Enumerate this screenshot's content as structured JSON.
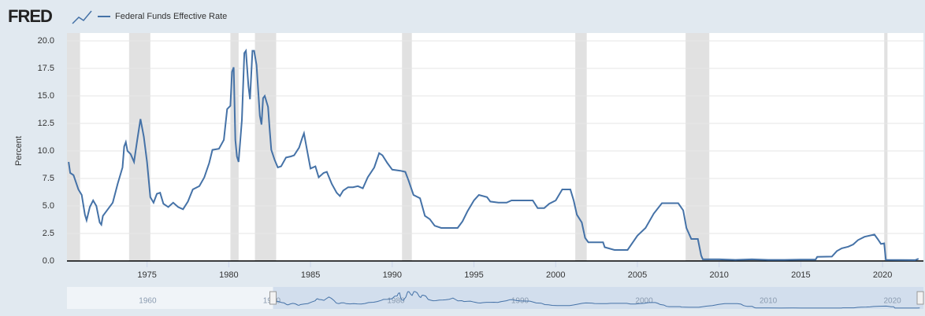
{
  "chart_data": {
    "type": "line",
    "logo": "FRED",
    "ylabel": "Percent",
    "x": [
      1970.2,
      1970.3,
      1970.5,
      1970.8,
      1971.0,
      1971.2,
      1971.3,
      1971.5,
      1971.7,
      1971.9,
      1972.1,
      1972.2,
      1972.3,
      1972.6,
      1972.9,
      1973.2,
      1973.5,
      1973.6,
      1973.7,
      1973.8,
      1974.0,
      1974.2,
      1974.4,
      1974.6,
      1974.8,
      1975.0,
      1975.2,
      1975.4,
      1975.6,
      1975.8,
      1976.0,
      1976.3,
      1976.6,
      1976.9,
      1977.2,
      1977.5,
      1977.8,
      1978.2,
      1978.5,
      1978.8,
      1979.0,
      1979.4,
      1979.7,
      1979.9,
      1980.1,
      1980.2,
      1980.3,
      1980.4,
      1980.5,
      1980.6,
      1980.8,
      1980.95,
      1981.05,
      1981.2,
      1981.3,
      1981.45,
      1981.55,
      1981.7,
      1981.9,
      1982.0,
      1982.1,
      1982.2,
      1982.4,
      1982.5,
      1982.6,
      1982.8,
      1983.0,
      1983.2,
      1983.5,
      1983.8,
      1984.0,
      1984.3,
      1984.5,
      1984.6,
      1984.8,
      1985.0,
      1985.3,
      1985.5,
      1985.8,
      1986.0,
      1986.3,
      1986.6,
      1986.8,
      1987.0,
      1987.3,
      1987.6,
      1987.9,
      1988.2,
      1988.5,
      1988.9,
      1989.2,
      1989.4,
      1989.7,
      1990.0,
      1990.5,
      1990.8,
      1991.0,
      1991.3,
      1991.7,
      1992.0,
      1992.3,
      1992.6,
      1993.0,
      1993.5,
      1994.0,
      1994.3,
      1994.6,
      1995.0,
      1995.3,
      1995.8,
      1996.0,
      1996.5,
      1997.0,
      1997.3,
      1998.0,
      1998.6,
      1998.9,
      1999.3,
      1999.6,
      2000.0,
      2000.4,
      2000.9,
      2001.1,
      2001.3,
      2001.6,
      2001.8,
      2002.0,
      2002.9,
      2003.0,
      2003.6,
      2004.4,
      2005.0,
      2005.5,
      2006.0,
      2006.5,
      2007.5,
      2007.8,
      2008.0,
      2008.3,
      2008.7,
      2008.9,
      2009.0,
      2010.0,
      2011.0,
      2012.0,
      2013.0,
      2014.0,
      2015.0,
      2015.9,
      2016.0,
      2016.9,
      2017.2,
      2017.5,
      2017.9,
      2018.2,
      2018.5,
      2018.9,
      2019.5,
      2019.7,
      2019.9,
      2020.1,
      2020.2,
      2021.0,
      2022.0,
      2022.2
    ],
    "series": [
      {
        "name": "Federal Funds Effective Rate",
        "color": "#4572a7",
        "values": [
          9.0,
          8.0,
          7.8,
          6.5,
          6.0,
          4.2,
          3.7,
          4.9,
          5.5,
          5.0,
          3.5,
          3.3,
          4.1,
          4.7,
          5.3,
          7.0,
          8.5,
          10.4,
          10.8,
          10.0,
          9.7,
          9.0,
          11.0,
          12.9,
          11.3,
          9.0,
          5.8,
          5.3,
          6.1,
          6.2,
          5.2,
          4.9,
          5.3,
          4.9,
          4.7,
          5.4,
          6.5,
          6.8,
          7.6,
          8.9,
          10.1,
          10.2,
          11.0,
          13.8,
          14.1,
          17.2,
          17.6,
          11.0,
          9.5,
          9.0,
          12.8,
          18.9,
          19.1,
          15.9,
          14.7,
          19.1,
          19.1,
          17.8,
          13.2,
          12.4,
          14.8,
          15.0,
          14.0,
          12.0,
          10.1,
          9.2,
          8.5,
          8.6,
          9.4,
          9.5,
          9.6,
          10.3,
          11.2,
          11.6,
          10.0,
          8.4,
          8.6,
          7.6,
          8.0,
          8.1,
          7.0,
          6.2,
          5.9,
          6.4,
          6.7,
          6.7,
          6.8,
          6.6,
          7.6,
          8.5,
          9.8,
          9.6,
          8.9,
          8.3,
          8.2,
          8.1,
          7.3,
          6.0,
          5.7,
          4.1,
          3.8,
          3.2,
          3.0,
          3.0,
          3.0,
          3.6,
          4.5,
          5.5,
          6.0,
          5.8,
          5.4,
          5.3,
          5.3,
          5.5,
          5.5,
          5.5,
          4.8,
          4.8,
          5.2,
          5.5,
          6.5,
          6.5,
          5.5,
          4.2,
          3.5,
          2.1,
          1.7,
          1.7,
          1.25,
          1.0,
          1.0,
          2.3,
          3.0,
          4.3,
          5.25,
          5.25,
          4.6,
          3.0,
          2.0,
          2.0,
          0.5,
          0.15,
          0.15,
          0.1,
          0.15,
          0.1,
          0.1,
          0.12,
          0.12,
          0.37,
          0.4,
          0.9,
          1.15,
          1.3,
          1.5,
          1.9,
          2.2,
          2.4,
          2.0,
          1.55,
          1.6,
          0.1,
          0.09,
          0.08,
          0.2
        ]
      }
    ],
    "recessions": [
      [
        1970.1,
        1970.9
      ],
      [
        1973.9,
        1975.2
      ],
      [
        1980.1,
        1980.6
      ],
      [
        1981.6,
        1982.9
      ],
      [
        1990.6,
        1991.2
      ],
      [
        2001.2,
        2001.9
      ],
      [
        2007.95,
        2009.4
      ],
      [
        2020.1,
        2020.3
      ]
    ],
    "xlim": [
      1970.1,
      2022.5
    ],
    "xticks": [
      1975,
      1980,
      1985,
      1990,
      1995,
      2000,
      2005,
      2010,
      2015,
      2020
    ],
    "ylim": [
      0,
      20
    ],
    "yticks": [
      {
        "value": 0,
        "label": "0.0"
      },
      2.5,
      {
        "value": 5,
        "label": "5.0"
      },
      7.5,
      {
        "value": 10,
        "label": "10.0"
      },
      12.5,
      {
        "value": 15,
        "label": "15.0"
      },
      17.5,
      {
        "value": 20,
        "label": "20.0"
      }
    ],
    "grid": true,
    "navigator": {
      "xlim": [
        1953.5,
        2022.5
      ],
      "xticks": [
        1960,
        1970,
        1980,
        1990,
        2000,
        2010,
        2020
      ]
    }
  }
}
